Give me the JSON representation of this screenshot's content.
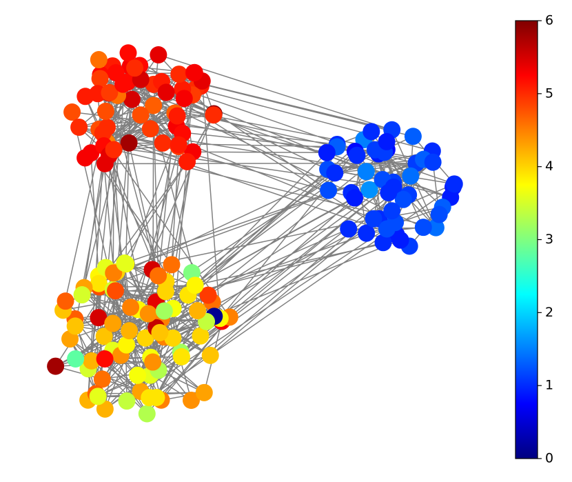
{
  "chart_data": {
    "type": "network",
    "colormap": "jet",
    "clim": [
      0,
      6
    ],
    "cticks": [
      0,
      1,
      2,
      3,
      4,
      5,
      6
    ],
    "edge_color": "#808080",
    "node_groups": [
      {
        "values": [
          5.9,
          5.8,
          5.3,
          5.4,
          5.2,
          5.1,
          5.0,
          5.3,
          5.5,
          5.2,
          5.1,
          4.9,
          5.0,
          5.2,
          5.4,
          5.6,
          5.1,
          5.0,
          4.8,
          4.9,
          5.2,
          5.3,
          5.1,
          5.0,
          4.7,
          4.5,
          4.6,
          4.8,
          5.0,
          5.2,
          5.4,
          5.5,
          5.1,
          5.0,
          4.9,
          4.8,
          5.3,
          5.2,
          5.1,
          5.0,
          5.4,
          5.3,
          5.2,
          4.9,
          4.7,
          4.6,
          5.0,
          5.1,
          5.2,
          5.3,
          5.5,
          5.1,
          4.8,
          4.9,
          5.0,
          5.2,
          5.4,
          5.3,
          5.1,
          5.0
        ]
      },
      {
        "values": [
          1.0,
          0.9,
          1.1,
          1.2,
          1.0,
          0.9,
          1.3,
          1.5,
          1.6,
          1.4,
          1.2,
          1.1,
          1.0,
          0.9,
          0.8,
          1.0,
          1.1,
          1.2,
          1.3,
          1.0,
          0.9,
          1.1,
          1.2,
          1.0,
          1.3,
          1.4,
          1.5,
          1.2,
          1.1,
          1.0,
          0.9,
          0.8,
          1.0,
          1.1,
          1.2,
          1.0,
          0.9,
          1.1,
          1.0,
          1.2,
          1.3,
          1.1,
          1.0,
          0.9,
          1.0,
          1.1,
          1.2,
          1.0,
          0.9,
          1.1
        ]
      },
      {
        "values": [
          4.5,
          4.3,
          4.0,
          3.8,
          3.5,
          3.2,
          4.6,
          4.4,
          4.1,
          3.9,
          3.7,
          3.4,
          4.7,
          4.5,
          4.2,
          4.0,
          3.6,
          3.3,
          5.5,
          5.8,
          5.3,
          4.8,
          4.6,
          4.3,
          4.1,
          3.9,
          3.7,
          3.0,
          2.8,
          4.5,
          4.4,
          4.2,
          4.0,
          3.8,
          3.6,
          3.4,
          4.6,
          4.3,
          4.1,
          3.9,
          3.7,
          3.5,
          5.2,
          5.5,
          4.9,
          4.7,
          4.5,
          4.2,
          4.0,
          3.8,
          3.6,
          3.3,
          0.1,
          4.4,
          4.2,
          4.0,
          3.8,
          3.6,
          3.4,
          4.7,
          4.5,
          4.3,
          4.1,
          3.9,
          3.7,
          3.5,
          5.4,
          5.6,
          4.8,
          4.6,
          4.4,
          4.2,
          4.0,
          3.8,
          3.6,
          3.2,
          4.5,
          4.3,
          4.1,
          3.9
        ]
      }
    ]
  }
}
